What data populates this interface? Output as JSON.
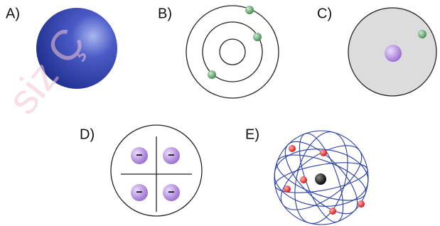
{
  "watermark": "siz Ç",
  "models": [
    {
      "label": "A)"
    },
    {
      "label": "B)"
    },
    {
      "label": "C)"
    },
    {
      "label": "D)",
      "charges": [
        "−",
        "−",
        "−",
        "−"
      ]
    },
    {
      "label": "E)"
    }
  ]
}
